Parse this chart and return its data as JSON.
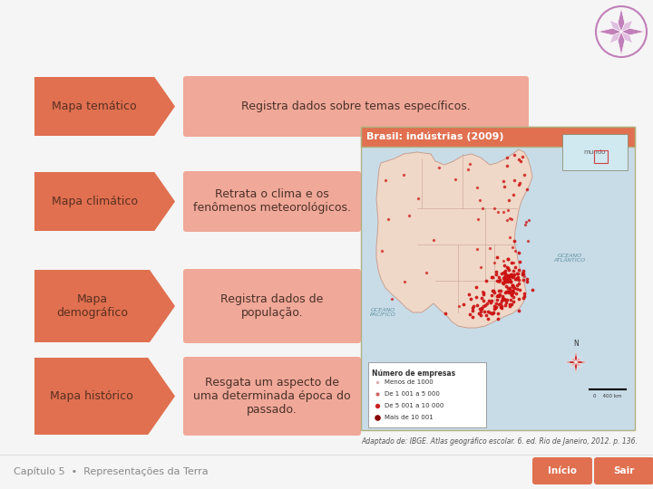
{
  "bg_color": "#f5f5f5",
  "arrow_color": "#e07050",
  "box_color": "#f0a898",
  "label_text_color": "#5a3020",
  "desc_text_color": "#4a3028",
  "compass_color": "#c080b8",
  "footer_text": "Capítulo 5  •  Representações da Terra",
  "footer_color": "#888888",
  "button_color": "#e07050",
  "map_title": "Brasil: indústrias (2009)",
  "map_title_bg": "#e07050",
  "map_title_text": "#ffffff",
  "map_border_color": "#c8b870",
  "caption_text": "Adaptado de: IBGE. Atlas geográfico escolar. 6. ed. Rio de Janeiro, 2012. p. 136.",
  "caption_color": "#555555",
  "rows": [
    {
      "label": "Mapa temático",
      "description": "Registra dados sobre temas específicos.",
      "two_line": false
    },
    {
      "label": "Mapa climático",
      "description": "Retrata o clima e os\nfenômenos meteorológicos.",
      "two_line": true
    },
    {
      "label": "Mapa\ndemográfico",
      "description": "Registra dados de\npopulação.",
      "two_line": true
    },
    {
      "label": "Mapa histórico",
      "description": "Resgata um aspecto de\numa determinada época do\npassado.",
      "two_line": true
    }
  ]
}
